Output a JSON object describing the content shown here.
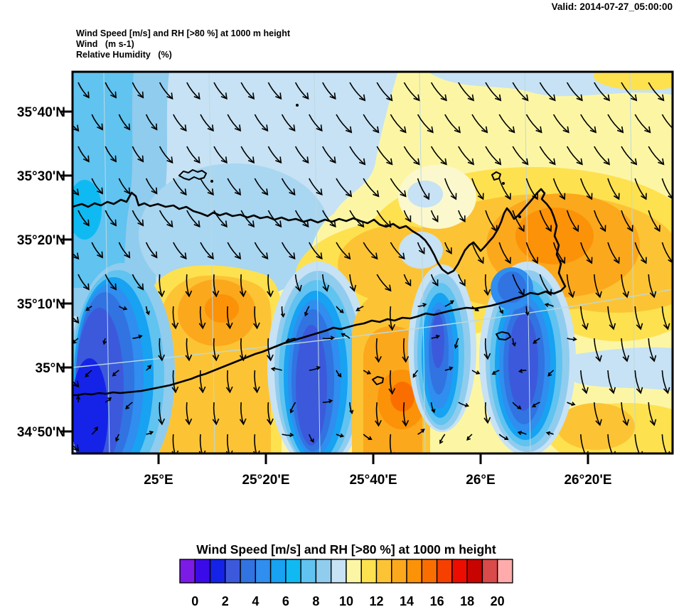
{
  "title": {
    "valid_time": "Valid: 2014-07-27_05:00:00"
  },
  "header_lines": {
    "line1": "Wind Speed [m/s] and RH [>80 %] at 1000 m height",
    "line2": "Wind   (m s-1)",
    "line3": "Relative Humidity   (%)"
  },
  "axes": {
    "lat_ticks": [
      "35°40'N",
      "35°30'N",
      "35°20'N",
      "35°10'N",
      "35°N",
      "34°50'N"
    ],
    "lon_ticks": [
      "25°E",
      "25°20'E",
      "25°40'E",
      "26°E",
      "26°20'E"
    ]
  },
  "colorbar": {
    "title": "Wind Speed [m/s] and RH [>80 %] at 1000 m height",
    "tick_labels": [
      "0",
      "2",
      "4",
      "6",
      "8",
      "10",
      "12",
      "14",
      "16",
      "18",
      "20"
    ],
    "colors": [
      "#7C1AE6",
      "#3A0BE8",
      "#1523E8",
      "#3C59DC",
      "#3173E1",
      "#2F8EEF",
      "#17A2F2",
      "#0FBAF2",
      "#60C3F0",
      "#90CCEE",
      "#C6E2F4",
      "#FCF6A4",
      "#FEE14F",
      "#FCC434",
      "#FCA81C",
      "#FB9207",
      "#FA6E00",
      "#F54000",
      "#EC0D00",
      "#C80400",
      "#D94A4A",
      "#FFABAB"
    ]
  },
  "map": {
    "coastline_color": "#000000",
    "arrow_color": "#000000",
    "graticule_color": "#bcd9e2",
    "extra_colors": {
      "mid_blue": "#A9D6F0",
      "cream": "#FBF8CE"
    }
  },
  "chart_data": {
    "type": "heatmap",
    "title": "Wind Speed [m/s] and RH [>80 %] at 1000 m height",
    "valid": "2014-07-27_05:00:00",
    "units": {
      "wind": "m s-1",
      "relative_humidity": "%"
    },
    "lat_axis": [
      "34°50'N",
      "35°N",
      "35°10'N",
      "35°20'N",
      "35°30'N",
      "35°40'N"
    ],
    "lon_axis": [
      "25°E",
      "25°20'E",
      "25°40'E",
      "26°E",
      "26°20'E"
    ],
    "colorbar_levels": [
      0,
      2,
      4,
      6,
      8,
      10,
      12,
      14,
      16,
      18,
      20
    ],
    "wind_speed_scale_m_s": {
      "min": 0,
      "max": 20,
      "cells": 22,
      "cell_step": 1
    },
    "field_summary": "Filled wind-speed contours over Crete with wind vectors from NW-N. Light-moderate blues (5-10 m/s) northwest, yellow-orange (10-16 m/s) over the northeast and east, calm dark-blue wake cores (<4 m/s) southwest of the island and in lee bands to the south, alternating with 11-15 m/s yellow-orange downslope bands."
  }
}
